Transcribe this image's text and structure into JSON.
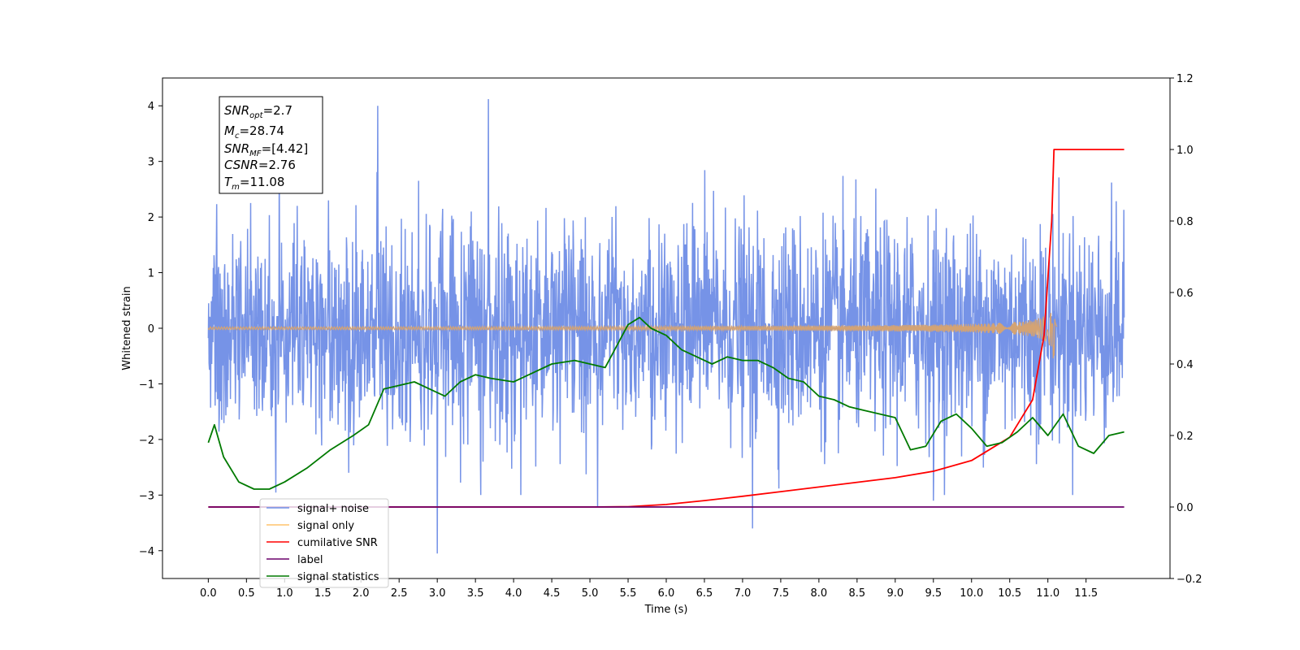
{
  "chart_data": {
    "type": "line",
    "xlabel": "Time (s)",
    "ylabel": "Whitened strain",
    "xlim": [
      -0.6,
      12.6
    ],
    "ylim": [
      -4.5,
      4.5
    ],
    "y2lim": [
      -0.2,
      1.2
    ],
    "xticks": [
      "0.0",
      "0.5",
      "1.0",
      "1.5",
      "2.0",
      "2.5",
      "3.0",
      "3.5",
      "4.0",
      "4.5",
      "5.0",
      "5.5",
      "6.0",
      "6.5",
      "7.0",
      "7.5",
      "8.0",
      "8.5",
      "9.0",
      "9.5",
      "10.0",
      "10.5",
      "11.0",
      "11.5"
    ],
    "yticks": [
      "4",
      "3",
      "2",
      "1",
      "0",
      "−1",
      "−2",
      "−3",
      "−4"
    ],
    "y2ticks": [
      "1.2",
      "1.0",
      "0.8",
      "0.6",
      "0.4",
      "0.2",
      "0.0",
      "−0.2"
    ],
    "annotation": [
      {
        "base": "SNR",
        "sub": "opt",
        "value": "=2.7"
      },
      {
        "base": "M",
        "sub": "c",
        "value": "=28.74"
      },
      {
        "base": "SNR",
        "sub": "MF",
        "value": "=[4.42]"
      },
      {
        "base": "CSNR",
        "sub": "",
        "value": "=2.76"
      },
      {
        "base": "T",
        "sub": "m",
        "value": "=11.08"
      }
    ],
    "legend": {
      "placement": "lower-left",
      "entries": [
        {
          "label": "signal+ noise",
          "color": "#6f8de6"
        },
        {
          "label": "signal only",
          "color": "#ffc46b"
        },
        {
          "label": "cumilative SNR",
          "color": "#ff0000"
        },
        {
          "label": "label",
          "color": "#6b006b"
        },
        {
          "label": "signal statistics",
          "color": "#007a00"
        }
      ]
    },
    "series": [
      {
        "name": "signal+ noise",
        "axis": "left",
        "color": "#6f8de6",
        "x_range": [
          0.0,
          12.0
        ],
        "typical_peak": 2.3,
        "outliers": [
          [
            2.22,
            4.0
          ],
          [
            3.67,
            4.12
          ],
          [
            3.0,
            -4.05
          ],
          [
            7.13,
            -3.6
          ],
          [
            5.1,
            -3.2
          ],
          [
            9.5,
            -3.1
          ]
        ]
      },
      {
        "name": "signal only",
        "axis": "left",
        "color": "#d4a373",
        "x_range": [
          0.0,
          11.12
        ],
        "merger_time": 11.08,
        "peak_amplitude": 0.6
      },
      {
        "name": "cumilative SNR",
        "axis": "right",
        "color": "#ff0000",
        "points": [
          [
            0.0,
            0.0
          ],
          [
            5.0,
            0.0
          ],
          [
            5.5,
            0.001
          ],
          [
            6.0,
            0.007
          ],
          [
            6.5,
            0.018
          ],
          [
            7.0,
            0.03
          ],
          [
            7.5,
            0.043
          ],
          [
            8.0,
            0.056
          ],
          [
            8.5,
            0.069
          ],
          [
            9.0,
            0.082
          ],
          [
            9.5,
            0.1
          ],
          [
            10.0,
            0.13
          ],
          [
            10.5,
            0.195
          ],
          [
            10.8,
            0.3
          ],
          [
            10.95,
            0.48
          ],
          [
            11.05,
            0.8
          ],
          [
            11.08,
            1.0
          ],
          [
            11.1,
            1.0
          ],
          [
            11.5,
            1.0
          ],
          [
            12.0,
            1.0
          ]
        ]
      },
      {
        "name": "label",
        "axis": "right",
        "color": "#6b006b",
        "points": [
          [
            0.0,
            0.0
          ],
          [
            12.0,
            0.0
          ]
        ]
      },
      {
        "name": "signal statistics",
        "axis": "right",
        "color": "#007a00",
        "points": [
          [
            0.0,
            0.18
          ],
          [
            0.08,
            0.23
          ],
          [
            0.2,
            0.14
          ],
          [
            0.4,
            0.07
          ],
          [
            0.6,
            0.05
          ],
          [
            0.8,
            0.05
          ],
          [
            1.0,
            0.07
          ],
          [
            1.3,
            0.11
          ],
          [
            1.6,
            0.16
          ],
          [
            1.9,
            0.2
          ],
          [
            2.1,
            0.23
          ],
          [
            2.3,
            0.33
          ],
          [
            2.5,
            0.34
          ],
          [
            2.7,
            0.35
          ],
          [
            2.9,
            0.33
          ],
          [
            3.1,
            0.31
          ],
          [
            3.3,
            0.35
          ],
          [
            3.5,
            0.37
          ],
          [
            3.7,
            0.36
          ],
          [
            4.0,
            0.35
          ],
          [
            4.2,
            0.37
          ],
          [
            4.5,
            0.4
          ],
          [
            4.8,
            0.41
          ],
          [
            5.0,
            0.4
          ],
          [
            5.2,
            0.39
          ],
          [
            5.35,
            0.45
          ],
          [
            5.5,
            0.51
          ],
          [
            5.65,
            0.53
          ],
          [
            5.8,
            0.5
          ],
          [
            6.0,
            0.48
          ],
          [
            6.2,
            0.44
          ],
          [
            6.4,
            0.42
          ],
          [
            6.6,
            0.4
          ],
          [
            6.8,
            0.42
          ],
          [
            7.0,
            0.41
          ],
          [
            7.2,
            0.41
          ],
          [
            7.4,
            0.39
          ],
          [
            7.6,
            0.36
          ],
          [
            7.8,
            0.35
          ],
          [
            8.0,
            0.31
          ],
          [
            8.2,
            0.3
          ],
          [
            8.4,
            0.28
          ],
          [
            8.6,
            0.27
          ],
          [
            8.8,
            0.26
          ],
          [
            9.0,
            0.25
          ],
          [
            9.2,
            0.16
          ],
          [
            9.4,
            0.17
          ],
          [
            9.6,
            0.24
          ],
          [
            9.8,
            0.26
          ],
          [
            10.0,
            0.22
          ],
          [
            10.2,
            0.17
          ],
          [
            10.4,
            0.18
          ],
          [
            10.6,
            0.21
          ],
          [
            10.8,
            0.25
          ],
          [
            11.0,
            0.2
          ],
          [
            11.2,
            0.26
          ],
          [
            11.4,
            0.17
          ],
          [
            11.6,
            0.15
          ],
          [
            11.8,
            0.2
          ],
          [
            12.0,
            0.21
          ]
        ]
      }
    ]
  }
}
